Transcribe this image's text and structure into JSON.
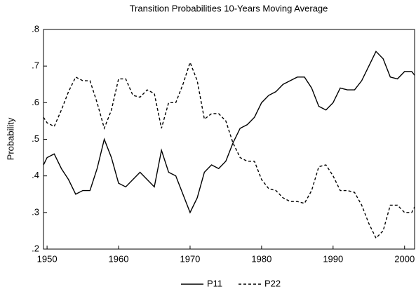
{
  "chart_data": {
    "type": "line",
    "title": "Transition Probabilities 10-Years Moving Average",
    "y_label": "Probability",
    "x": [
      1949.5,
      1950,
      1951,
      1952,
      1953,
      1954,
      1955,
      1956,
      1957,
      1958,
      1959,
      1960,
      1961,
      1962,
      1963,
      1964,
      1965,
      1966,
      1967,
      1968,
      1969,
      1970,
      1971,
      1972,
      1973,
      1974,
      1975,
      1976,
      1977,
      1978,
      1979,
      1980,
      1981,
      1982,
      1983,
      1984,
      1985,
      1986,
      1987,
      1988,
      1989,
      1990,
      1991,
      1992,
      1993,
      1994,
      1995,
      1996,
      1997,
      1998,
      1999,
      2000,
      2001,
      2001.4
    ],
    "series": [
      {
        "name": "P11",
        "color": "#000000",
        "style": "solid",
        "values": [
          0.43,
          0.45,
          0.46,
          0.42,
          0.39,
          0.35,
          0.36,
          0.36,
          0.42,
          0.5,
          0.45,
          0.38,
          0.37,
          0.39,
          0.41,
          0.39,
          0.37,
          0.47,
          0.41,
          0.4,
          0.35,
          0.3,
          0.34,
          0.41,
          0.43,
          0.42,
          0.44,
          0.49,
          0.53,
          0.54,
          0.56,
          0.6,
          0.62,
          0.63,
          0.65,
          0.66,
          0.67,
          0.67,
          0.64,
          0.59,
          0.58,
          0.6,
          0.64,
          0.635,
          0.635,
          0.66,
          0.7,
          0.74,
          0.72,
          0.67,
          0.665,
          0.685,
          0.685,
          0.675
        ]
      },
      {
        "name": "P22",
        "color": "#000000",
        "style": "dashed",
        "values": [
          0.56,
          0.545,
          0.535,
          0.58,
          0.63,
          0.67,
          0.66,
          0.66,
          0.6,
          0.53,
          0.58,
          0.665,
          0.665,
          0.62,
          0.615,
          0.635,
          0.625,
          0.53,
          0.6,
          0.6,
          0.65,
          0.71,
          0.66,
          0.555,
          0.57,
          0.57,
          0.55,
          0.49,
          0.45,
          0.44,
          0.44,
          0.39,
          0.365,
          0.36,
          0.34,
          0.33,
          0.33,
          0.325,
          0.36,
          0.425,
          0.43,
          0.4,
          0.36,
          0.36,
          0.355,
          0.32,
          0.27,
          0.23,
          0.25,
          0.32,
          0.32,
          0.3,
          0.3,
          0.315
        ]
      }
    ],
    "xlim": [
      1949.5,
      2001.4
    ],
    "xticks": [
      1950,
      1960,
      1970,
      1980,
      1990,
      2000
    ],
    "ylim": [
      0.2,
      0.8
    ],
    "yticks": [
      {
        "value": 0.2,
        "label": ".2"
      },
      {
        "value": 0.3,
        "label": ".3"
      },
      {
        "value": 0.4,
        "label": ".4"
      },
      {
        "value": 0.5,
        "label": ".5"
      },
      {
        "value": 0.6,
        "label": ".6"
      },
      {
        "value": 0.7,
        "label": ".7"
      },
      {
        "value": 0.8,
        "label": ".8"
      }
    ],
    "legend_position": "bottom"
  }
}
